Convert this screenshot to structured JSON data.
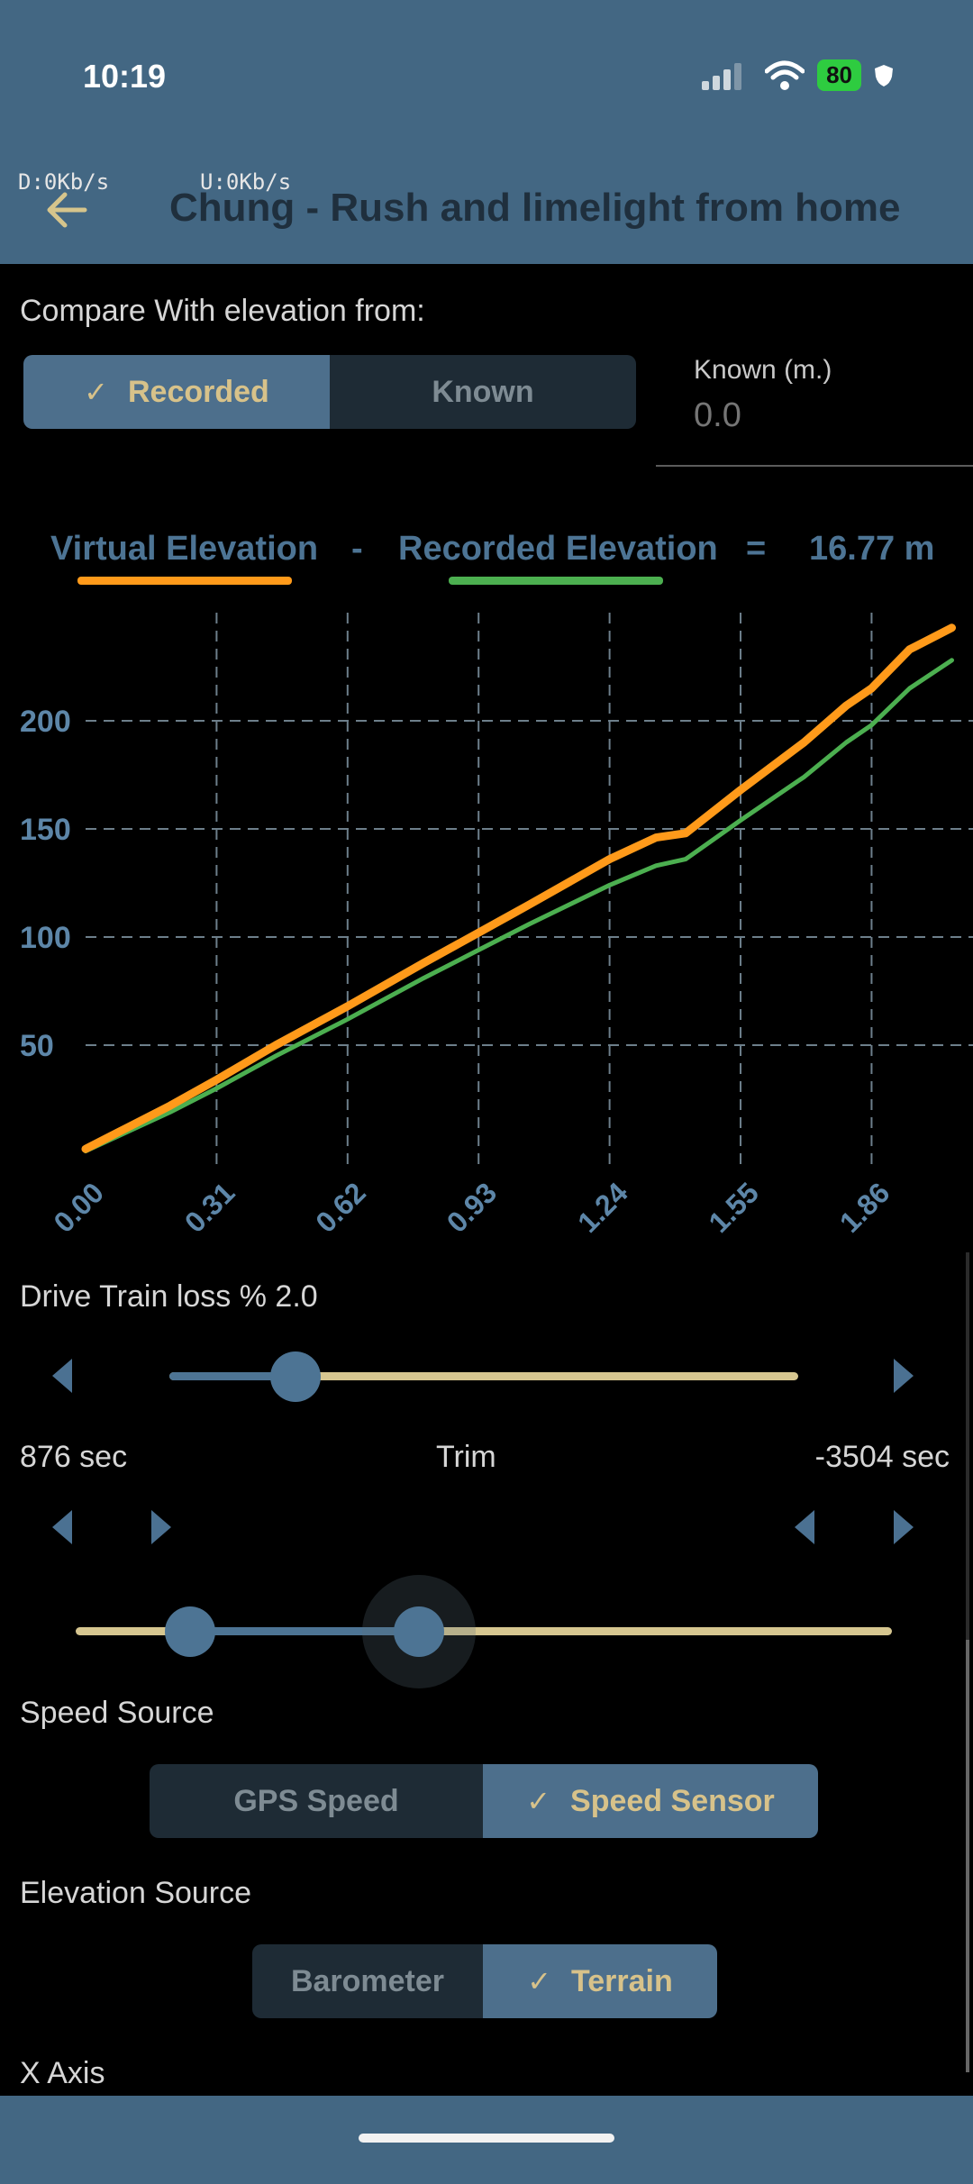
{
  "status_bar": {
    "time": "10:19",
    "battery": "80"
  },
  "network": {
    "down": "D:0Kb/s",
    "up": "U:0Kb/s"
  },
  "header": {
    "title": "Chung - Rush and limelight from home"
  },
  "compare": {
    "label": "Compare With elevation from:",
    "options": [
      "Recorded",
      "Known"
    ],
    "selected": "Recorded",
    "known_label": "Known (m.)",
    "known_placeholder": "0.0"
  },
  "legend": {
    "virtual": "Virtual Elevation",
    "minus": "-",
    "recorded": "Recorded Elevation",
    "equals": "=",
    "result": "16.77 m"
  },
  "colors": {
    "virtual": "#ff9a1a",
    "recorded": "#4caf50",
    "accent": "#4d7494",
    "header": "#436783"
  },
  "chart_data": {
    "type": "line",
    "x_ticks": [
      "0.00",
      "0.31",
      "0.62",
      "0.93",
      "1.24",
      "1.55",
      "1.86"
    ],
    "y_ticks": [
      "50",
      "100",
      "150",
      "200"
    ],
    "xlim": [
      0,
      2.1
    ],
    "ylim": [
      0,
      250
    ],
    "grid": true,
    "series": [
      {
        "name": "Virtual Elevation",
        "color": "#ff9a1a",
        "x": [
          0.0,
          0.1,
          0.2,
          0.31,
          0.45,
          0.62,
          0.8,
          0.93,
          1.05,
          1.24,
          1.35,
          1.42,
          1.55,
          1.7,
          1.8,
          1.86,
          1.95,
          2.05
        ],
        "y": [
          2,
          12,
          22,
          34,
          50,
          68,
          88,
          102,
          115,
          136,
          146,
          148,
          168,
          190,
          207,
          215,
          233,
          243
        ]
      },
      {
        "name": "Recorded Elevation",
        "color": "#4caf50",
        "x": [
          0.0,
          0.1,
          0.2,
          0.31,
          0.45,
          0.62,
          0.8,
          0.93,
          1.05,
          1.24,
          1.35,
          1.42,
          1.55,
          1.7,
          1.8,
          1.86,
          1.95,
          2.05
        ],
        "y": [
          1,
          10,
          19,
          30,
          45,
          62,
          81,
          94,
          106,
          124,
          133,
          136,
          154,
          174,
          190,
          198,
          215,
          228
        ]
      }
    ]
  },
  "drive_train": {
    "label": "Drive Train loss % 2.0",
    "value_fraction": 0.2
  },
  "trim": {
    "left": "876 sec",
    "label": "Trim",
    "right": "-3504 sec",
    "start_fraction": 0.14,
    "end_fraction": 0.42
  },
  "speed_source": {
    "label": "Speed Source",
    "options": [
      "GPS Speed",
      "Speed Sensor"
    ],
    "selected": "Speed Sensor"
  },
  "elevation_source": {
    "label": "Elevation Source",
    "options": [
      "Barometer",
      "Terrain"
    ],
    "selected": "Terrain"
  },
  "x_axis": {
    "label": "X Axis"
  }
}
